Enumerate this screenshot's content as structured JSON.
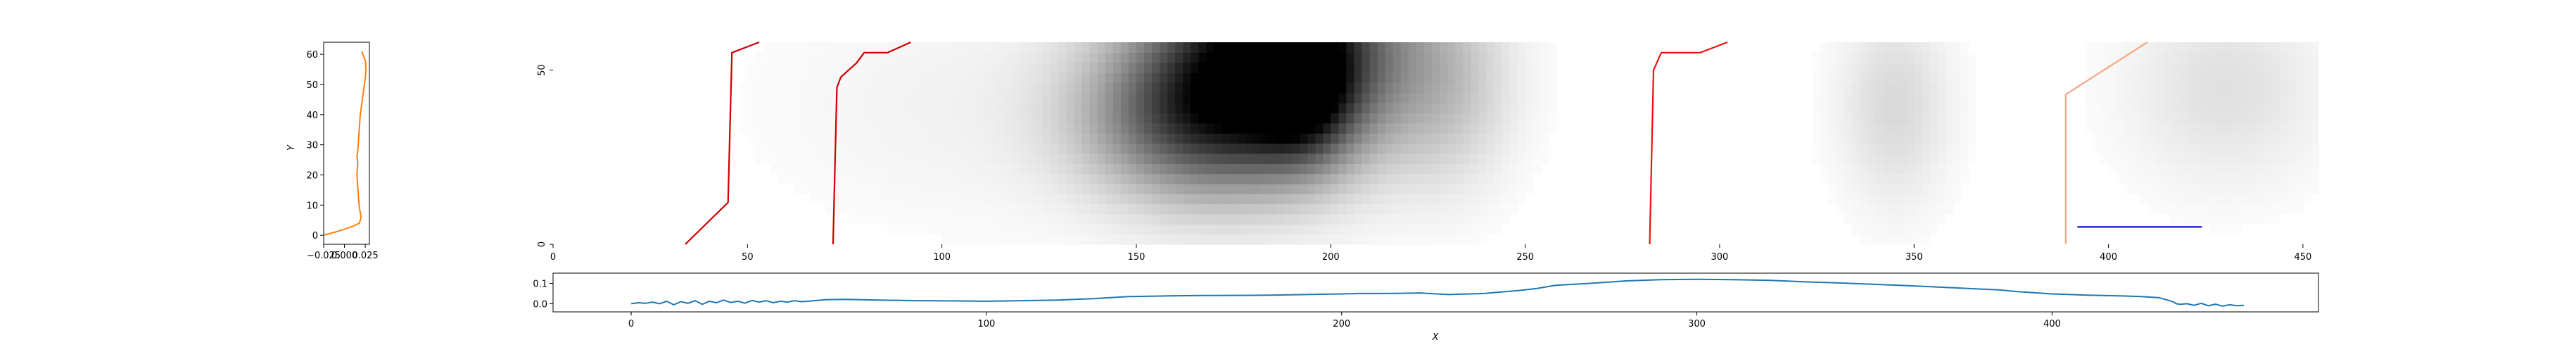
{
  "chart_data": [
    {
      "id": "left-profile",
      "type": "line",
      "ylabel": "Y",
      "xlabel": "",
      "xlim": [
        -0.025,
        0.03
      ],
      "ylim": [
        -3,
        64
      ],
      "x_ticks": [
        -0.025,
        0.0,
        0.025
      ],
      "x_tick_labels": [
        "−0.025",
        "0.000",
        "0.025"
      ],
      "y_ticks": [
        0,
        10,
        20,
        30,
        40,
        50,
        60
      ],
      "y_tick_labels": [
        "0",
        "10",
        "20",
        "30",
        "40",
        "50",
        "60"
      ],
      "series": [
        {
          "color": "#ff7f0e",
          "points": [
            [
              -0.025,
              0
            ],
            [
              -0.012,
              1
            ],
            [
              0.0,
              2
            ],
            [
              0.01,
              3
            ],
            [
              0.018,
              4
            ],
            [
              0.02,
              6
            ],
            [
              0.018,
              9
            ],
            [
              0.017,
              12
            ],
            [
              0.016,
              16
            ],
            [
              0.015,
              20
            ],
            [
              0.016,
              24
            ],
            [
              0.015,
              26
            ],
            [
              0.016,
              28
            ],
            [
              0.017,
              32
            ],
            [
              0.018,
              36
            ],
            [
              0.019,
              40
            ],
            [
              0.021,
              44
            ],
            [
              0.023,
              48
            ],
            [
              0.025,
              52
            ],
            [
              0.026,
              55
            ],
            [
              0.025,
              58
            ],
            [
              0.022,
              60
            ],
            [
              0.021,
              61
            ]
          ]
        }
      ]
    },
    {
      "id": "heatmap",
      "type": "heatmap",
      "xlim": [
        0,
        454
      ],
      "ylim": [
        0,
        58
      ],
      "x_ticks": [
        0,
        50,
        100,
        150,
        200,
        250,
        300,
        350,
        400,
        450
      ],
      "x_tick_labels": [
        "0",
        "50",
        "100",
        "150",
        "200",
        "250",
        "300",
        "350",
        "400",
        "450"
      ],
      "y_ticks": [
        0,
        50
      ],
      "y_tick_labels": [
        "0",
        "50"
      ],
      "colormap": "greys",
      "blobs": [
        {
          "x": 187,
          "y": 57,
          "sx": 22,
          "sy": 22,
          "v": 1.0
        },
        {
          "x": 165,
          "y": 36,
          "sx": 20,
          "sy": 16,
          "v": 0.55
        },
        {
          "x": 193,
          "y": 44,
          "sx": 9,
          "sy": 14,
          "v": 0.45
        },
        {
          "x": 230,
          "y": 45,
          "sx": 12,
          "sy": 20,
          "v": 0.18
        },
        {
          "x": 345,
          "y": 40,
          "sx": 10,
          "sy": 20,
          "v": 0.15
        },
        {
          "x": 430,
          "y": 45,
          "sx": 18,
          "sy": 20,
          "v": 0.12
        },
        {
          "x": 110,
          "y": 40,
          "sx": 40,
          "sy": 25,
          "v": 0.05
        }
      ],
      "lines": [
        {
          "color": "#cc0000",
          "points": [
            [
              34,
              0
            ],
            [
              45,
              12
            ],
            [
              46,
              55
            ],
            [
              53,
              62
            ]
          ]
        },
        {
          "color": "#cc0000",
          "points": [
            [
              72,
              0
            ],
            [
              73,
              45
            ],
            [
              74,
              48
            ],
            [
              76,
              50
            ],
            [
              78,
              52
            ],
            [
              80,
              55
            ],
            [
              86,
              55
            ],
            [
              92,
              62
            ]
          ]
        },
        {
          "color": "#ee1111",
          "points": [
            [
              282,
              0
            ],
            [
              283,
              50
            ],
            [
              285,
              55
            ],
            [
              295,
              55
            ],
            [
              302,
              62
            ]
          ]
        },
        {
          "color": "#f4a582",
          "points": [
            [
              389,
              0
            ],
            [
              389,
              43
            ],
            [
              410,
              62
            ]
          ]
        },
        {
          "color": "#0000cc",
          "points": [
            [
              392,
              5
            ],
            [
              424,
              5
            ]
          ]
        }
      ]
    },
    {
      "id": "bottom-profile",
      "type": "line",
      "xlabel": "X",
      "ylabel": "",
      "xlim": [
        -22,
        475
      ],
      "ylim": [
        -0.04,
        0.15
      ],
      "x_ticks": [
        0,
        100,
        200,
        300,
        400
      ],
      "x_tick_labels": [
        "0",
        "100",
        "200",
        "300",
        "400"
      ],
      "y_ticks": [
        0.0,
        0.1
      ],
      "y_tick_labels": [
        "0.0",
        "0.1"
      ],
      "series": [
        {
          "color": "#1f77b4",
          "points": [
            [
              0,
              0.0
            ],
            [
              2,
              0.005
            ],
            [
              4,
              0.002
            ],
            [
              6,
              0.008
            ],
            [
              8,
              0.0
            ],
            [
              10,
              0.012
            ],
            [
              12,
              -0.005
            ],
            [
              14,
              0.01
            ],
            [
              16,
              0.002
            ],
            [
              18,
              0.015
            ],
            [
              20,
              -0.003
            ],
            [
              22,
              0.012
            ],
            [
              24,
              0.005
            ],
            [
              26,
              0.018
            ],
            [
              28,
              0.006
            ],
            [
              30,
              0.012
            ],
            [
              32,
              0.003
            ],
            [
              34,
              0.016
            ],
            [
              36,
              0.008
            ],
            [
              38,
              0.015
            ],
            [
              40,
              0.005
            ],
            [
              42,
              0.012
            ],
            [
              44,
              0.008
            ],
            [
              46,
              0.015
            ],
            [
              48,
              0.01
            ],
            [
              50,
              0.013
            ],
            [
              55,
              0.02
            ],
            [
              60,
              0.021
            ],
            [
              70,
              0.018
            ],
            [
              80,
              0.015
            ],
            [
              90,
              0.014
            ],
            [
              100,
              0.012
            ],
            [
              110,
              0.015
            ],
            [
              120,
              0.018
            ],
            [
              130,
              0.025
            ],
            [
              140,
              0.035
            ],
            [
              150,
              0.038
            ],
            [
              160,
              0.04
            ],
            [
              170,
              0.041
            ],
            [
              180,
              0.042
            ],
            [
              190,
              0.045
            ],
            [
              200,
              0.048
            ],
            [
              205,
              0.05
            ],
            [
              210,
              0.05
            ],
            [
              215,
              0.051
            ],
            [
              220,
              0.052
            ],
            [
              222,
              0.053
            ],
            [
              230,
              0.045
            ],
            [
              240,
              0.05
            ],
            [
              250,
              0.065
            ],
            [
              255,
              0.075
            ],
            [
              260,
              0.09
            ],
            [
              265,
              0.095
            ],
            [
              270,
              0.1
            ],
            [
              280,
              0.112
            ],
            [
              290,
              0.118
            ],
            [
              300,
              0.12
            ],
            [
              310,
              0.118
            ],
            [
              320,
              0.115
            ],
            [
              330,
              0.108
            ],
            [
              340,
              0.102
            ],
            [
              350,
              0.095
            ],
            [
              360,
              0.088
            ],
            [
              370,
              0.08
            ],
            [
              380,
              0.072
            ],
            [
              385,
              0.068
            ],
            [
              390,
              0.06
            ],
            [
              400,
              0.048
            ],
            [
              410,
              0.042
            ],
            [
              420,
              0.038
            ],
            [
              425,
              0.035
            ],
            [
              430,
              0.03
            ],
            [
              432,
              0.02
            ],
            [
              434,
              0.01
            ],
            [
              435,
              0.0
            ],
            [
              436,
              -0.003
            ],
            [
              438,
              0.0
            ],
            [
              440,
              -0.008
            ],
            [
              442,
              0.002
            ],
            [
              444,
              -0.01
            ],
            [
              446,
              -0.002
            ],
            [
              448,
              -0.012
            ],
            [
              450,
              -0.005
            ],
            [
              452,
              -0.01
            ],
            [
              454,
              -0.008
            ]
          ]
        }
      ]
    }
  ]
}
